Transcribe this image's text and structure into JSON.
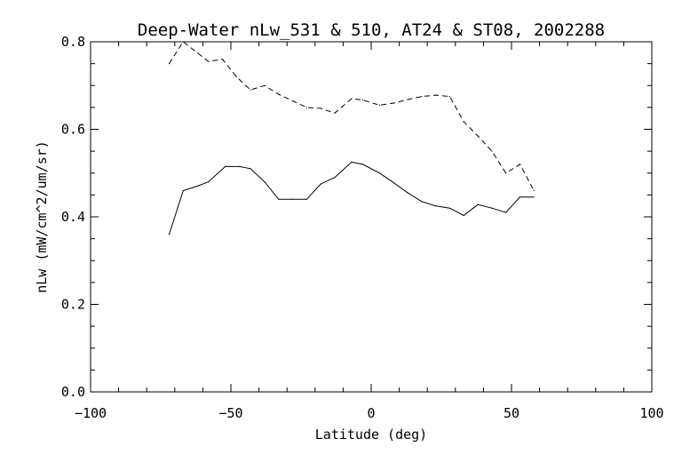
{
  "chart_data": {
    "type": "line",
    "title": "Deep-Water nLw_531 & 510, AT24 & ST08, 2002288",
    "xlabel": "Latitude (deg)",
    "ylabel": "nLw (mW/cm^2/um/sr)",
    "xlim": [
      -100,
      100
    ],
    "ylim": [
      0,
      0.8
    ],
    "x_ticks": [
      -100,
      -50,
      0,
      50,
      100
    ],
    "x_tick_labels": [
      "−100",
      "−50",
      "0",
      "50",
      "100"
    ],
    "y_ticks": [
      0.0,
      0.2,
      0.4,
      0.6,
      0.8
    ],
    "y_tick_labels": [
      "0.0",
      "0.2",
      "0.4",
      "0.6",
      "0.8"
    ],
    "grid": false,
    "legend": "none",
    "series": [
      {
        "style": "solid",
        "color": "#000000",
        "x": [
          -72,
          -67,
          -62,
          -58,
          -52,
          -47,
          -43,
          -38,
          -33,
          -28,
          -23,
          -18,
          -13,
          -7,
          -3,
          3,
          8,
          13,
          18,
          23,
          28,
          33,
          38,
          43,
          48,
          53,
          58
        ],
        "y": [
          0.36,
          0.46,
          0.47,
          0.48,
          0.515,
          0.515,
          0.51,
          0.48,
          0.44,
          0.44,
          0.44,
          0.475,
          0.49,
          0.525,
          0.52,
          0.5,
          0.478,
          0.455,
          0.435,
          0.425,
          0.42,
          0.403,
          0.428,
          0.42,
          0.41,
          0.445,
          0.445
        ]
      },
      {
        "style": "dashed",
        "color": "#000000",
        "x": [
          -72,
          -67,
          -62,
          -58,
          -53,
          -48,
          -43,
          -38,
          -33,
          -28,
          -23,
          -18,
          -13,
          -7,
          -3,
          3,
          8,
          13,
          18,
          23,
          28,
          33,
          38,
          43,
          48,
          53,
          58
        ],
        "y": [
          0.75,
          0.8,
          0.775,
          0.755,
          0.76,
          0.72,
          0.69,
          0.7,
          0.68,
          0.665,
          0.65,
          0.648,
          0.637,
          0.67,
          0.667,
          0.655,
          0.66,
          0.668,
          0.675,
          0.678,
          0.675,
          0.617,
          0.585,
          0.55,
          0.5,
          0.52,
          0.46
        ]
      }
    ]
  }
}
